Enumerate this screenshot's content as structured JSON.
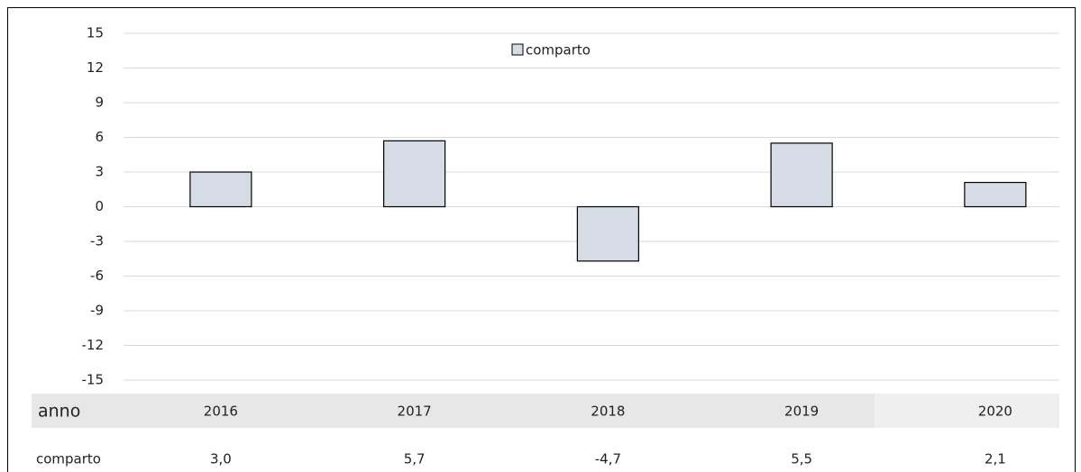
{
  "chart_data": {
    "type": "bar",
    "categories": [
      "2016",
      "2017",
      "2018",
      "2019",
      "2020"
    ],
    "xlabel": "anno",
    "series": [
      {
        "name": "comparto",
        "color": "#d6dce5",
        "values": [
          3.0,
          5.7,
          -4.7,
          5.5,
          2.1
        ],
        "value_labels": [
          "3,0",
          "5,7",
          "-4,7",
          "5,5",
          "2,1"
        ]
      }
    ],
    "ylim": [
      -15,
      15
    ],
    "yticks": [
      -15,
      -12,
      -9,
      -6,
      -3,
      0,
      3,
      6,
      9,
      12,
      15
    ],
    "grid": true,
    "legend": "top"
  }
}
